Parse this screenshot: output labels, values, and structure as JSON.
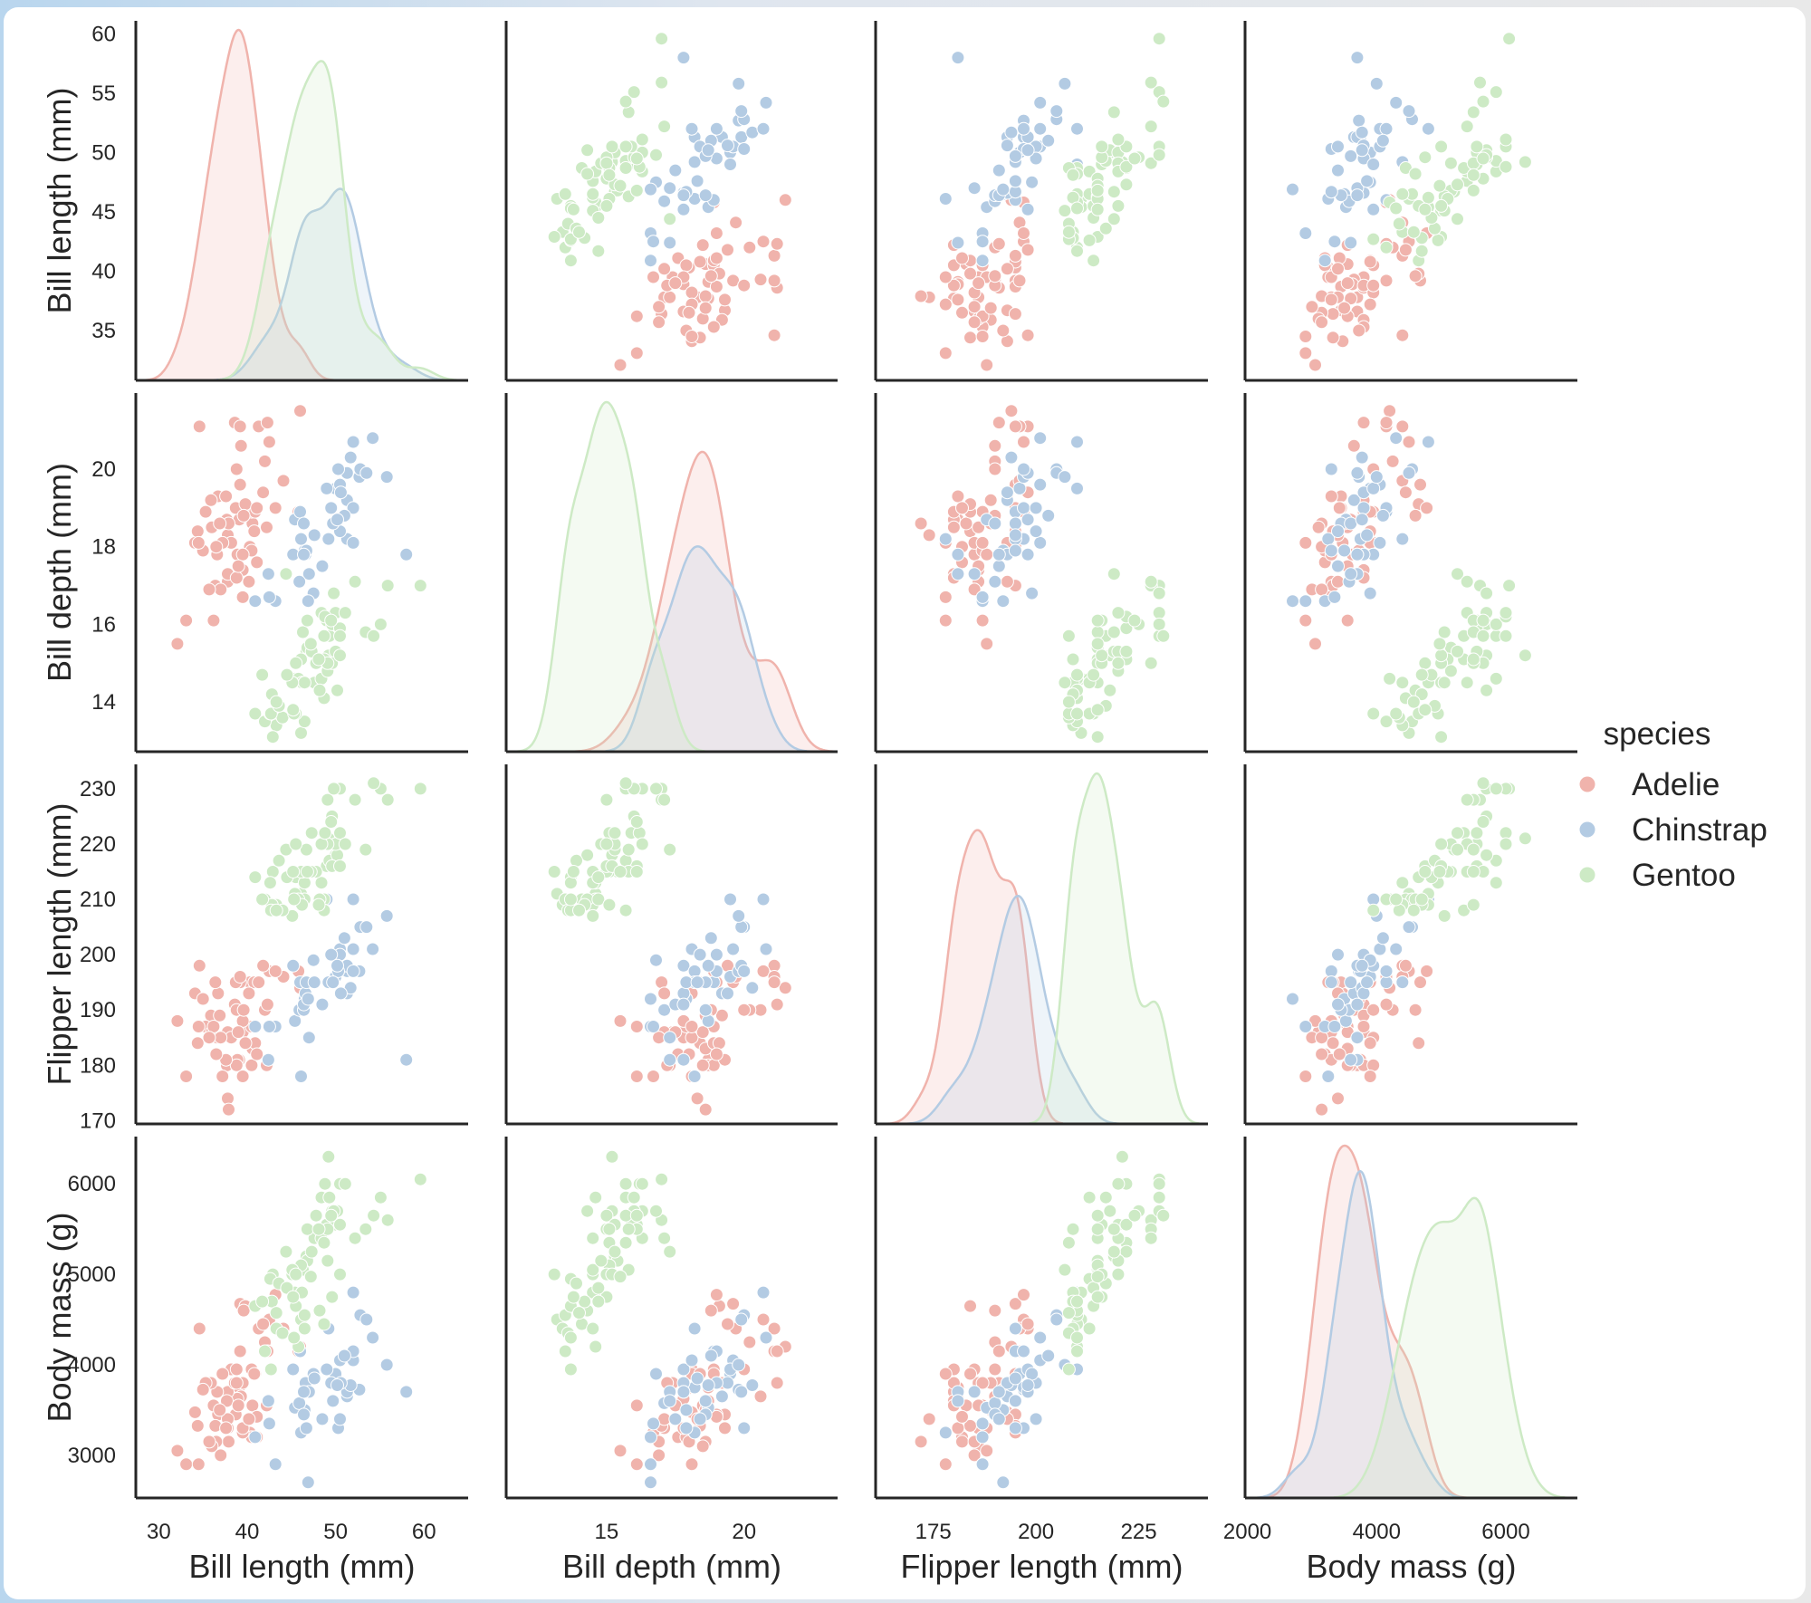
{
  "chart_data": {
    "type": "scatter-matrix",
    "diagonal": "kde",
    "grid": false,
    "legend": {
      "title": "species",
      "placement": "right"
    },
    "variables": [
      {
        "label": "Bill length (mm)",
        "lim": [
          27.4,
          65.0
        ],
        "ticks": [
          30,
          40,
          50,
          60
        ],
        "yticks": [
          35,
          40,
          45,
          50,
          55,
          60
        ],
        "ylim": [
          30.8,
          61.1
        ]
      },
      {
        "label": "Bill depth (mm)",
        "lim": [
          11.35,
          23.4
        ],
        "ticks": [
          15,
          20
        ],
        "yticks": [
          14,
          16,
          18,
          20
        ],
        "ylim": [
          12.72,
          21.96
        ]
      },
      {
        "label": "Flipper length (mm)",
        "lim": [
          160.96,
          241.85
        ],
        "ticks": [
          175,
          200,
          225
        ],
        "yticks": [
          170,
          180,
          190,
          200,
          210,
          220,
          230
        ],
        "ylim": [
          169.4,
          234.4
        ]
      },
      {
        "label": "Body mass (g)",
        "lim": [
          1964,
          7107
        ],
        "ticks": [
          2000,
          4000,
          6000
        ],
        "yticks": [
          3000,
          4000,
          5000,
          6000
        ],
        "ylim": [
          2528,
          6523
        ]
      }
    ],
    "species": [
      {
        "name": "Adelie",
        "color": "#f0b3ac",
        "points": [
          [
            39.1,
            18.7,
            181,
            3750
          ],
          [
            39.5,
            17.4,
            186,
            3800
          ],
          [
            40.3,
            18.0,
            195,
            3250
          ],
          [
            36.7,
            19.3,
            193,
            3450
          ],
          [
            39.3,
            20.6,
            190,
            3650
          ],
          [
            38.9,
            17.8,
            181,
            3625
          ],
          [
            39.2,
            19.6,
            195,
            4675
          ],
          [
            34.1,
            18.1,
            193,
            3475
          ],
          [
            42.0,
            20.2,
            190,
            4250
          ],
          [
            37.8,
            17.1,
            186,
            3300
          ],
          [
            37.8,
            17.3,
            180,
            3700
          ],
          [
            41.1,
            17.6,
            182,
            3200
          ],
          [
            38.6,
            21.2,
            191,
            3800
          ],
          [
            34.6,
            21.1,
            198,
            4400
          ],
          [
            36.6,
            17.8,
            185,
            3700
          ],
          [
            38.7,
            19.0,
            195,
            3450
          ],
          [
            42.5,
            20.7,
            197,
            4500
          ],
          [
            34.4,
            18.4,
            184,
            3325
          ],
          [
            46.0,
            21.5,
            194,
            4200
          ],
          [
            37.8,
            18.3,
            174,
            3400
          ],
          [
            37.7,
            18.7,
            180,
            3600
          ],
          [
            35.9,
            19.2,
            189,
            3800
          ],
          [
            38.2,
            18.1,
            185,
            3950
          ],
          [
            38.8,
            17.2,
            180,
            3800
          ],
          [
            35.3,
            18.9,
            187,
            3800
          ],
          [
            40.6,
            18.6,
            183,
            3550
          ],
          [
            40.5,
            17.9,
            187,
            3200
          ],
          [
            37.9,
            18.6,
            172,
            3150
          ],
          [
            40.5,
            18.9,
            180,
            3950
          ],
          [
            39.5,
            16.7,
            178,
            3250
          ],
          [
            37.2,
            18.1,
            178,
            3900
          ],
          [
            39.5,
            17.8,
            188,
            3300
          ],
          [
            40.9,
            18.9,
            184,
            3900
          ],
          [
            36.4,
            17.0,
            195,
            3325
          ],
          [
            39.2,
            21.1,
            196,
            4150
          ],
          [
            38.8,
            20.0,
            190,
            3950
          ],
          [
            42.2,
            18.5,
            180,
            3550
          ],
          [
            37.6,
            19.3,
            181,
            3300
          ],
          [
            39.8,
            19.1,
            184,
            4650
          ],
          [
            36.5,
            18.0,
            182,
            3150
          ],
          [
            40.8,
            18.4,
            195,
            3900
          ],
          [
            36.0,
            18.5,
            186,
            3100
          ],
          [
            44.1,
            19.7,
            196,
            4400
          ],
          [
            37.0,
            16.9,
            185,
            3000
          ],
          [
            39.6,
            18.8,
            190,
            4600
          ],
          [
            41.1,
            19.0,
            182,
            3425
          ],
          [
            36.2,
            16.1,
            187,
            3550
          ],
          [
            32.1,
            15.5,
            188,
            3050
          ],
          [
            43.2,
            19.0,
            197,
            4775
          ],
          [
            35.7,
            16.9,
            185,
            3150
          ],
          [
            41.3,
            21.1,
            195,
            4400
          ],
          [
            33.1,
            16.1,
            178,
            2900
          ],
          [
            40.2,
            17.1,
            193,
            3400
          ],
          [
            35.0,
            17.9,
            192,
            3725
          ],
          [
            41.8,
            19.4,
            198,
            4450
          ],
          [
            34.5,
            18.1,
            187,
            2900
          ],
          [
            39.0,
            17.5,
            186,
            3550
          ],
          [
            45.8,
            18.9,
            197,
            4150
          ],
          [
            36.9,
            18.6,
            189,
            3500
          ],
          [
            42.3,
            21.2,
            191,
            4150
          ]
        ]
      },
      {
        "name": "Chinstrap",
        "color": "#b3cbe3",
        "points": [
          [
            46.5,
            17.9,
            192,
            3500
          ],
          [
            50.0,
            19.5,
            196,
            3900
          ],
          [
            51.3,
            19.2,
            193,
            3650
          ],
          [
            45.4,
            18.7,
            188,
            3525
          ],
          [
            52.7,
            19.8,
            197,
            3725
          ],
          [
            45.2,
            17.8,
            198,
            3950
          ],
          [
            46.1,
            18.2,
            178,
            3250
          ],
          [
            51.3,
            18.2,
            197,
            3750
          ],
          [
            46.0,
            18.9,
            195,
            4150
          ],
          [
            51.3,
            19.9,
            198,
            3700
          ],
          [
            46.6,
            17.8,
            193,
            3800
          ],
          [
            51.7,
            20.3,
            194,
            3775
          ],
          [
            47.0,
            17.3,
            185,
            3700
          ],
          [
            52.0,
            18.1,
            201,
            4050
          ],
          [
            45.9,
            17.1,
            190,
            3575
          ],
          [
            50.5,
            19.6,
            201,
            4050
          ],
          [
            50.3,
            20.0,
            197,
            3300
          ],
          [
            58.0,
            17.8,
            181,
            3700
          ],
          [
            46.4,
            18.6,
            190,
            3450
          ],
          [
            49.2,
            18.2,
            195,
            4400
          ],
          [
            42.4,
            17.3,
            181,
            3600
          ],
          [
            48.5,
            17.5,
            191,
            3400
          ],
          [
            43.2,
            16.6,
            187,
            2900
          ],
          [
            50.6,
            19.4,
            193,
            3800
          ],
          [
            46.7,
            17.9,
            195,
            3300
          ],
          [
            52.0,
            19.0,
            197,
            4150
          ],
          [
            50.5,
            18.4,
            200,
            3400
          ],
          [
            49.5,
            19.0,
            200,
            3800
          ],
          [
            46.4,
            17.8,
            191,
            3700
          ],
          [
            52.8,
            20.0,
            205,
            4550
          ],
          [
            40.9,
            16.6,
            187,
            3200
          ],
          [
            54.2,
            20.8,
            201,
            4300
          ],
          [
            42.5,
            16.7,
            187,
            3350
          ],
          [
            51.0,
            18.8,
            203,
            4100
          ],
          [
            49.7,
            18.6,
            195,
            3600
          ],
          [
            47.5,
            16.8,
            199,
            3900
          ],
          [
            47.6,
            18.3,
            195,
            3850
          ],
          [
            52.0,
            20.7,
            210,
            4800
          ],
          [
            46.9,
            16.6,
            192,
            2700
          ],
          [
            53.5,
            19.9,
            205,
            4500
          ],
          [
            49.0,
            19.5,
            210,
            3950
          ],
          [
            55.8,
            19.8,
            207,
            4000
          ],
          [
            50.2,
            18.7,
            198,
            3775
          ]
        ]
      },
      {
        "name": "Gentoo",
        "color": "#cdeac5",
        "points": [
          [
            46.1,
            13.2,
            211,
            4500
          ],
          [
            50.0,
            16.3,
            230,
            5700
          ],
          [
            48.7,
            14.1,
            210,
            4450
          ],
          [
            50.0,
            15.2,
            218,
            5700
          ],
          [
            47.6,
            14.5,
            215,
            5400
          ],
          [
            46.5,
            13.5,
            210,
            4550
          ],
          [
            45.4,
            14.6,
            211,
            4800
          ],
          [
            46.7,
            15.3,
            219,
            5200
          ],
          [
            43.3,
            13.4,
            209,
            4400
          ],
          [
            46.8,
            15.4,
            215,
            5150
          ],
          [
            40.9,
            13.7,
            214,
            4650
          ],
          [
            49.0,
            16.1,
            216,
            5550
          ],
          [
            45.5,
            13.7,
            214,
            4650
          ],
          [
            48.4,
            14.6,
            213,
            5850
          ],
          [
            45.8,
            14.6,
            210,
            4200
          ],
          [
            49.3,
            15.7,
            217,
            5850
          ],
          [
            42.0,
            13.5,
            210,
            4150
          ],
          [
            49.2,
            15.2,
            221,
            6300
          ],
          [
            46.2,
            14.5,
            209,
            4800
          ],
          [
            48.7,
            15.1,
            222,
            5350
          ],
          [
            50.2,
            14.3,
            218,
            5700
          ],
          [
            45.1,
            14.5,
            215,
            5000
          ],
          [
            46.5,
            14.5,
            213,
            4400
          ],
          [
            46.3,
            15.8,
            215,
            5050
          ],
          [
            42.9,
            13.1,
            215,
            5000
          ],
          [
            46.1,
            15.1,
            215,
            5100
          ],
          [
            47.8,
            15.0,
            215,
            5650
          ],
          [
            48.2,
            14.3,
            210,
            4600
          ],
          [
            50.0,
            15.3,
            220,
            5550
          ],
          [
            47.3,
            15.3,
            222,
            5250
          ],
          [
            42.8,
            14.2,
            209,
            4700
          ],
          [
            45.1,
            14.5,
            207,
            5050
          ],
          [
            59.6,
            17.0,
            230,
            6050
          ],
          [
            49.1,
            14.8,
            220,
            5150
          ],
          [
            48.4,
            16.3,
            220,
            5400
          ],
          [
            42.6,
            13.7,
            213,
            4950
          ],
          [
            44.4,
            17.3,
            219,
            5250
          ],
          [
            44.0,
            13.6,
            208,
            4350
          ],
          [
            48.7,
            15.7,
            208,
            5350
          ],
          [
            42.7,
            13.7,
            208,
            3950
          ],
          [
            49.6,
            16.0,
            225,
            5700
          ],
          [
            45.3,
            13.7,
            210,
            4300
          ],
          [
            49.6,
            15.0,
            216,
            4750
          ],
          [
            50.5,
            15.9,
            222,
            5550
          ],
          [
            43.6,
            13.9,
            217,
            4900
          ],
          [
            45.5,
            15.0,
            220,
            5000
          ],
          [
            50.5,
            15.2,
            216,
            5000
          ],
          [
            44.5,
            14.7,
            214,
            4850
          ],
          [
            55.9,
            17.0,
            228,
            5600
          ],
          [
            47.2,
            15.5,
            215,
            4975
          ],
          [
            49.1,
            15.0,
            228,
            5500
          ],
          [
            46.8,
            16.1,
            215,
            5500
          ],
          [
            41.7,
            14.7,
            210,
            4700
          ],
          [
            53.4,
            15.8,
            219,
            5500
          ],
          [
            43.3,
            14.0,
            208,
            4575
          ],
          [
            48.1,
            15.1,
            209,
            5500
          ],
          [
            50.5,
            15.7,
            230,
            6000
          ],
          [
            49.8,
            16.8,
            230,
            5700
          ],
          [
            55.1,
            16.0,
            230,
            5850
          ],
          [
            48.8,
            16.2,
            222,
            6000
          ],
          [
            51.1,
            16.3,
            220,
            6000
          ],
          [
            45.2,
            13.8,
            215,
            4750
          ],
          [
            52.2,
            17.1,
            228,
            5400
          ],
          [
            54.3,
            15.7,
            231,
            5650
          ],
          [
            49.5,
            16.1,
            224,
            5650
          ]
        ]
      }
    ]
  }
}
